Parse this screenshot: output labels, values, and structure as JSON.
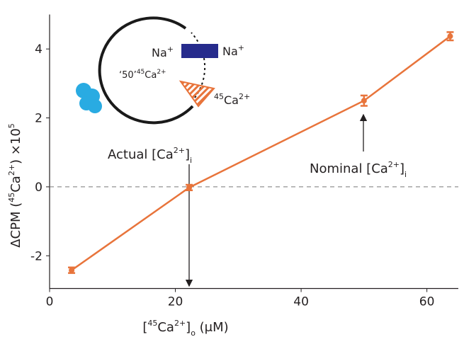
{
  "chart_data": {
    "type": "line",
    "x_label": [
      "[",
      "45",
      "Ca",
      "2+",
      "]",
      "o",
      " (μM)"
    ],
    "y_label": [
      "ΔCPM (",
      "45",
      "Ca",
      "2+",
      ") ×10",
      "5"
    ],
    "x": [
      3.5,
      22.2,
      50,
      63.7
    ],
    "series": [
      {
        "color": "#e8743b",
        "values": [
          -2.42,
          -0.02,
          2.5,
          4.37
        ],
        "errors": [
          0.08,
          0.08,
          0.15,
          0.12
        ]
      }
    ],
    "xlim": [
      0,
      65
    ],
    "xticks": [
      0,
      20,
      40,
      60
    ],
    "ylim": [
      -2.95,
      5.0
    ],
    "yticks": [
      -2,
      0,
      2,
      4
    ],
    "zero_line": true,
    "annotations": [
      [
        "Actual [Ca",
        "2+",
        "]",
        "i"
      ],
      [
        "Nominal [Ca",
        "2+",
        "]",
        "i"
      ]
    ],
    "inset": {
      "na_left": [
        "Na",
        "+"
      ],
      "na_right": [
        "Na",
        "+"
      ],
      "fifty": [
        "‘50’",
        "45",
        "Ca",
        "2+"
      ],
      "ca": [
        "45",
        "Ca",
        "2+"
      ]
    }
  }
}
